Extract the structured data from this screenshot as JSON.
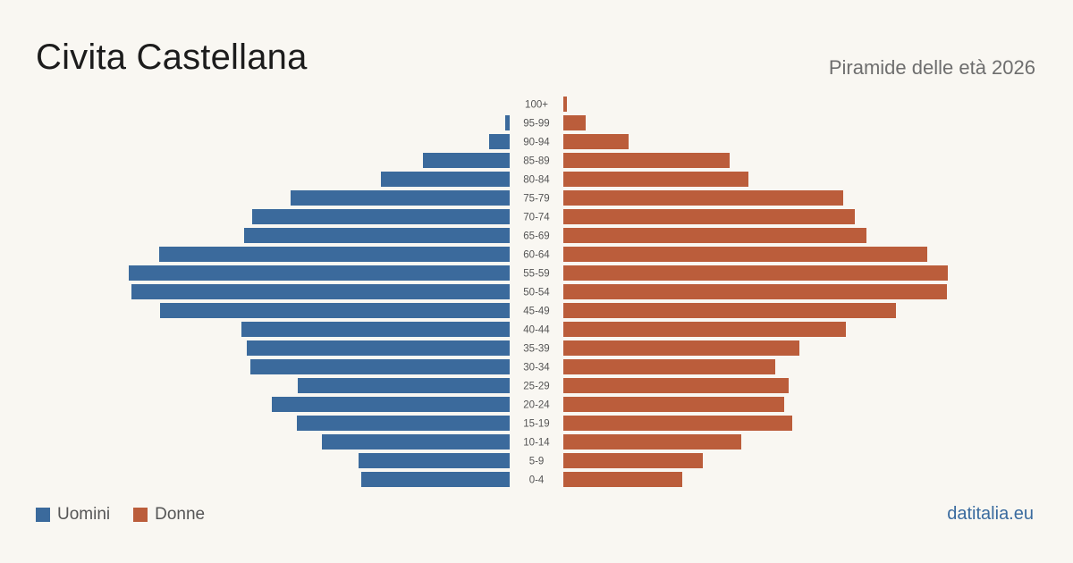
{
  "title": "Civita Castellana",
  "subtitle": "Piramide delle età 2026",
  "source": "datitalia.eu",
  "colors": {
    "male": "#3b6a9c",
    "female": "#bb5d3b",
    "background": "#f9f7f2"
  },
  "legend": {
    "male_label": "Uomini",
    "female_label": "Donne"
  },
  "chart_data": {
    "type": "bar",
    "orientation": "horizontal-pyramid",
    "categories": [
      "100+",
      "95-99",
      "90-94",
      "85-89",
      "80-84",
      "75-79",
      "70-74",
      "65-69",
      "60-64",
      "55-59",
      "50-54",
      "45-49",
      "40-44",
      "35-39",
      "30-34",
      "25-29",
      "20-24",
      "15-19",
      "10-14",
      "5-9",
      "0-4"
    ],
    "series": [
      {
        "name": "Uomini",
        "values": [
          0,
          5,
          23,
          97,
          144,
          245,
          288,
          297,
          392,
          426,
          423,
          391,
          300,
          294,
          290,
          237,
          266,
          238,
          210,
          169,
          166
        ]
      },
      {
        "name": "Donne",
        "values": [
          4,
          25,
          73,
          186,
          207,
          313,
          326,
          339,
          407,
          430,
          429,
          372,
          316,
          264,
          237,
          252,
          247,
          256,
          199,
          156,
          133
        ]
      }
    ]
  }
}
